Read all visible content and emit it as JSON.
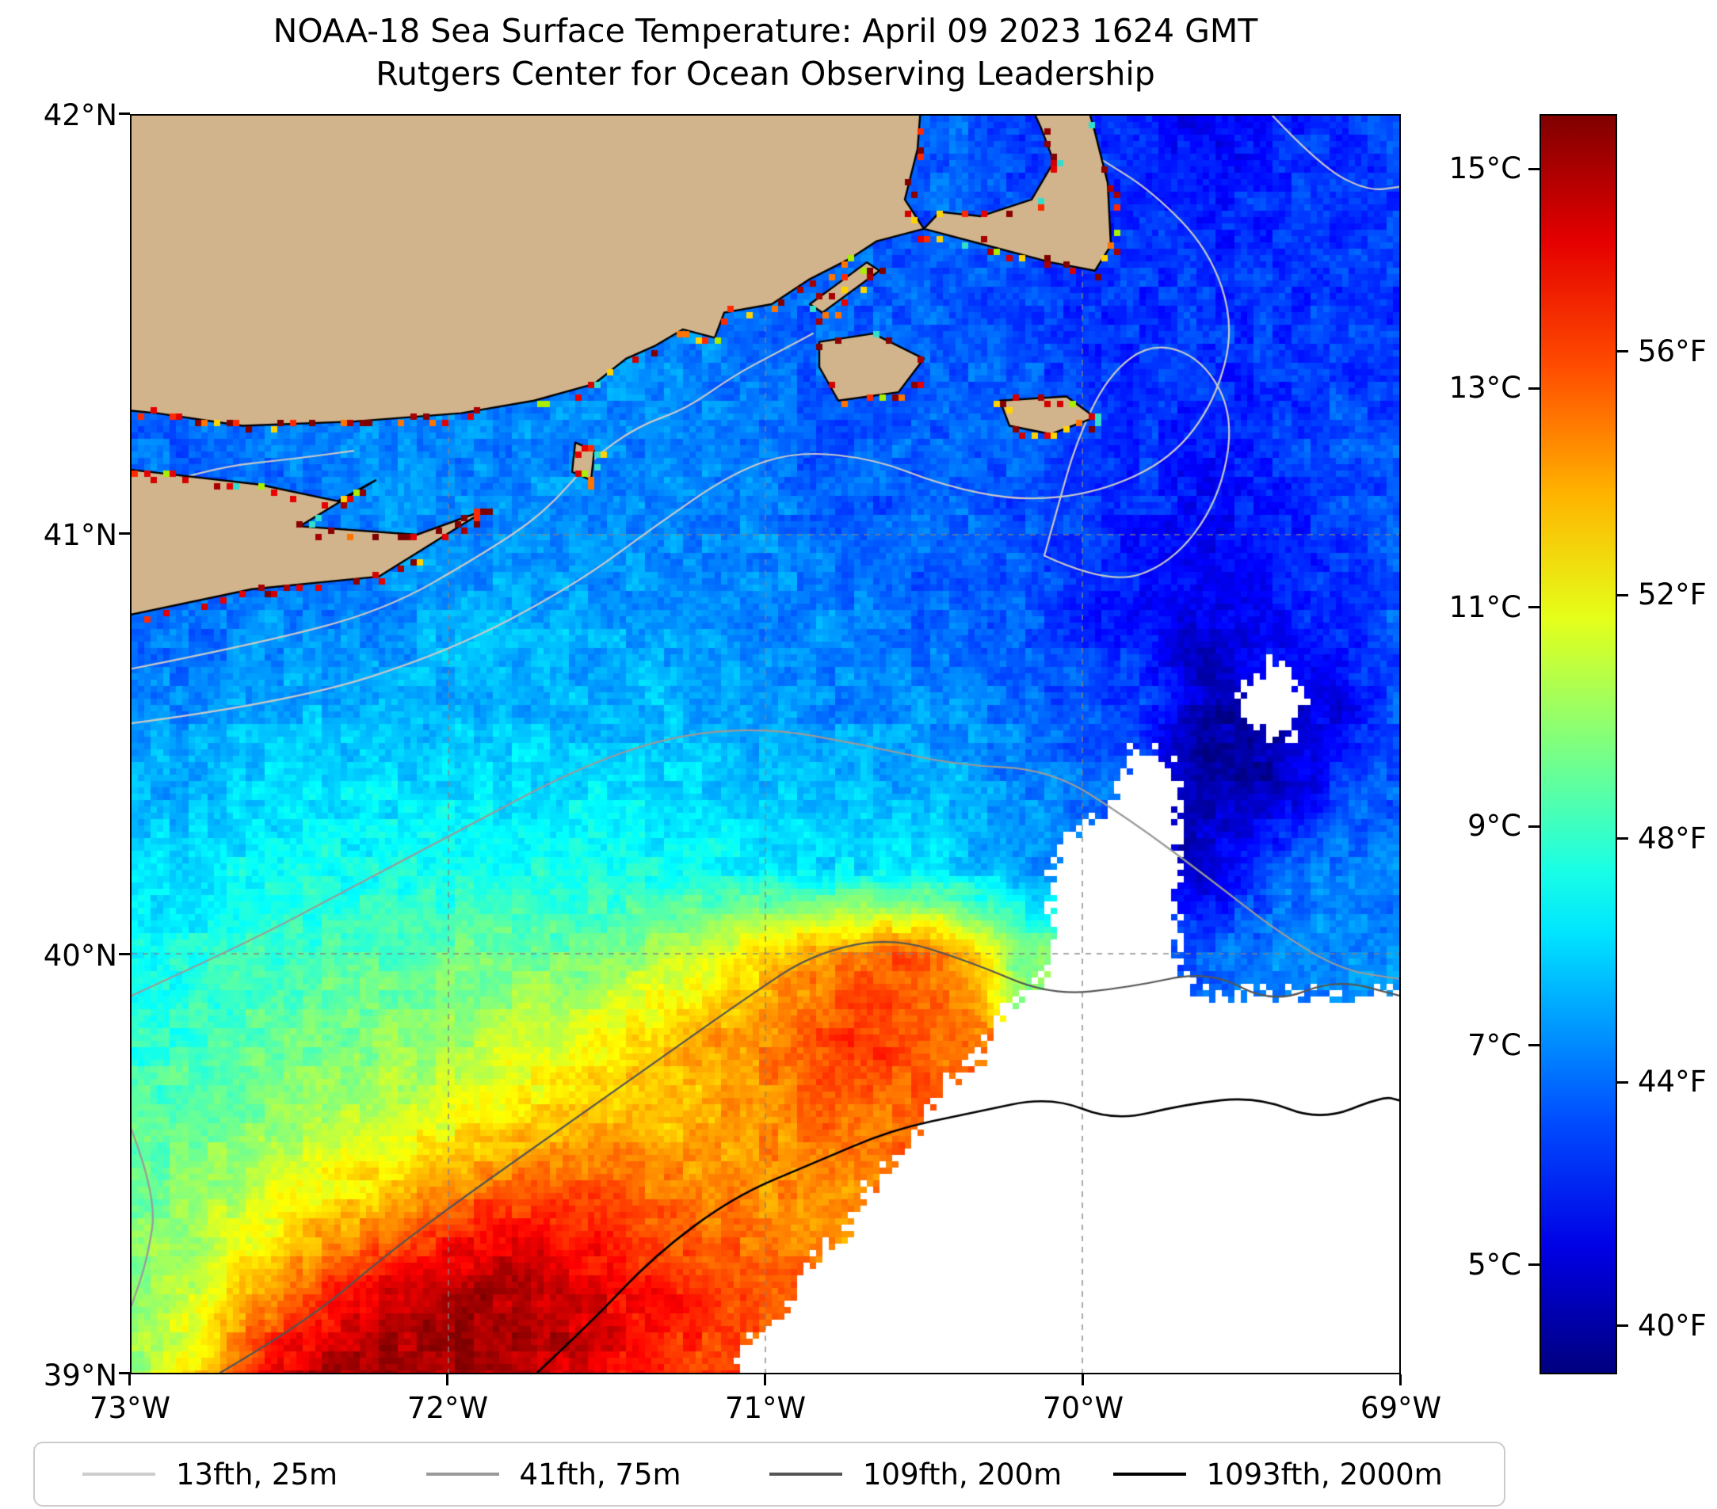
{
  "title": {
    "line1": "NOAA-18 Sea Surface Temperature: April 09 2023 1624 GMT",
    "line2": "Rutgers Center for Ocean Observing Leadership"
  },
  "axes": {
    "x_ticks": [
      "73°W",
      "72°W",
      "71°W",
      "70°W",
      "69°W"
    ],
    "y_ticks": [
      "42°N",
      "41°N",
      "40°N",
      "39°N"
    ],
    "lon_range": [
      -73,
      -69
    ],
    "lat_range": [
      39,
      42
    ]
  },
  "colorbar": {
    "colormap": "jet",
    "range_c": [
      4,
      15.5
    ],
    "celsius_ticks": [
      {
        "label": "15°C",
        "value": 15
      },
      {
        "label": "13°C",
        "value": 13
      },
      {
        "label": "11°C",
        "value": 11
      },
      {
        "label": "9°C",
        "value": 9
      },
      {
        "label": "7°C",
        "value": 7
      },
      {
        "label": "5°C",
        "value": 5
      }
    ],
    "fahrenheit_ticks": [
      {
        "label": "56°F",
        "value": 56
      },
      {
        "label": "52°F",
        "value": 52
      },
      {
        "label": "48°F",
        "value": 48
      },
      {
        "label": "44°F",
        "value": 44
      },
      {
        "label": "40°F",
        "value": 40
      }
    ]
  },
  "legend": {
    "items": [
      {
        "label": "13fth, 25m",
        "color": "#cdcdcd"
      },
      {
        "label": "41fth, 75m",
        "color": "#9a9a9a"
      },
      {
        "label": "109fth, 200m",
        "color": "#555555"
      },
      {
        "label": "1093fth, 2000m",
        "color": "#000000"
      }
    ]
  },
  "chart_data": {
    "type": "heatmap",
    "units": "°C",
    "value_range": [
      4,
      15.5
    ],
    "no_data_value": -1,
    "lon_start": -73,
    "lon_step": 0.2,
    "lat_start": 42,
    "lat_step": -0.2,
    "sst_grid": [
      [
        6.5,
        6.5,
        6.5,
        6.5,
        6.5,
        6.5,
        6.5,
        6.5,
        6.5,
        6.5,
        6.5,
        6.5,
        6.5,
        6.5,
        6.2,
        6.0,
        5.6,
        5.2,
        5.6,
        6.0,
        6.2
      ],
      [
        6.5,
        6.5,
        6.5,
        6.5,
        6.5,
        6.5,
        6.5,
        6.5,
        6.5,
        6.5,
        6.5,
        6.5,
        6.5,
        6.5,
        6.2,
        6.0,
        6.0,
        5.6,
        6.0,
        6.0,
        6.0
      ],
      [
        6.6,
        6.6,
        6.6,
        6.6,
        6.6,
        6.6,
        6.7,
        7.0,
        7.0,
        7.0,
        6.6,
        6.5,
        6.5,
        6.5,
        6.2,
        6.0,
        6.0,
        6.0,
        6.0,
        6.0,
        6.0
      ],
      [
        6.6,
        6.6,
        6.6,
        6.6,
        6.6,
        6.6,
        6.7,
        7.0,
        7.0,
        7.0,
        6.6,
        6.5,
        6.5,
        6.5,
        6.4,
        6.0,
        6.0,
        6.0,
        6.0,
        6.0,
        6.0
      ],
      [
        6.6,
        6.6,
        6.7,
        7.0,
        7.0,
        7.0,
        7.0,
        7.0,
        7.0,
        7.0,
        6.6,
        6.5,
        6.5,
        6.5,
        6.4,
        6.0,
        6.0,
        5.6,
        6.0,
        6.4,
        6.4
      ],
      [
        6.6,
        6.6,
        6.6,
        6.8,
        7.0,
        7.0,
        7.0,
        7.0,
        7.0,
        7.0,
        7.0,
        6.6,
        6.5,
        6.5,
        6.4,
        6.0,
        5.6,
        5.5,
        5.6,
        6.0,
        6.4
      ],
      [
        6.6,
        6.6,
        7.0,
        7.0,
        7.0,
        7.4,
        7.4,
        7.4,
        7.2,
        7.0,
        7.0,
        7.0,
        6.6,
        6.5,
        6.5,
        6.0,
        5.5,
        5.0,
        5.5,
        6.0,
        6.4
      ],
      [
        7.0,
        7.0,
        7.4,
        7.4,
        7.5,
        7.5,
        7.5,
        7.5,
        7.5,
        7.4,
        7.2,
        7.0,
        7.0,
        7.0,
        6.6,
        6.4,
        6.0,
        4.5,
        -1,
        5.0,
        6.4
      ],
      [
        7.4,
        7.4,
        7.8,
        8.0,
        8.0,
        8.0,
        8.0,
        8.0,
        8.0,
        7.8,
        7.6,
        7.5,
        7.5,
        7.4,
        7.0,
        6.6,
        -1,
        4.5,
        4.5,
        6.0,
        6.5
      ],
      [
        7.8,
        8.0,
        8.4,
        8.5,
        8.5,
        8.5,
        8.5,
        8.5,
        8.5,
        8.4,
        8.2,
        8.0,
        8.0,
        7.8,
        7.2,
        -1,
        -1,
        5.0,
        6.4,
        7.0,
        7.0
      ],
      [
        8.5,
        8.6,
        9.0,
        9.0,
        9.2,
        9.4,
        9.5,
        9.6,
        10.0,
        10.5,
        11.5,
        12.5,
        13.0,
        12.4,
        9.8,
        -1,
        -1,
        6.5,
        7.0,
        7.0,
        7.0
      ],
      [
        8.8,
        9.0,
        9.4,
        9.6,
        9.8,
        10.0,
        10.5,
        11.0,
        11.5,
        12.0,
        12.6,
        13.4,
        13.5,
        12.8,
        -1,
        -1,
        -1,
        -1,
        -1,
        -1,
        -1
      ],
      [
        9.2,
        9.4,
        9.8,
        10.2,
        10.6,
        11.0,
        11.5,
        11.8,
        12.0,
        12.0,
        12.4,
        13.0,
        12.8,
        -1,
        -1,
        -1,
        -1,
        -1,
        -1,
        -1,
        -1
      ],
      [
        9.6,
        10.0,
        10.8,
        11.4,
        12.0,
        13.0,
        13.4,
        13.4,
        13.0,
        12.6,
        12.4,
        12.4,
        -1,
        -1,
        -1,
        -1,
        -1,
        -1,
        -1,
        -1,
        -1
      ],
      [
        10.0,
        10.6,
        12.0,
        13.4,
        14.4,
        15.0,
        15.0,
        14.6,
        14.0,
        13.5,
        13.0,
        -1,
        -1,
        -1,
        -1,
        -1,
        -1,
        -1,
        -1,
        -1,
        -1
      ],
      [
        10.0,
        11.5,
        14.0,
        15.0,
        15.2,
        15.2,
        15.0,
        14.6,
        14.0,
        13.4,
        -1,
        -1,
        -1,
        -1,
        -1,
        -1,
        -1,
        -1,
        -1,
        -1,
        -1
      ]
    ],
    "land_color": "#d2b48c",
    "coastal_speckle_colors": [
      "#7f0000",
      "#a80000",
      "#d40000",
      "#ff2a00",
      "#ff7300",
      "#ffd300",
      "#aaee00",
      "#8b0000",
      "#e60000",
      "#33ddcc"
    ],
    "grid_lines": {
      "lons": [
        -72,
        -71,
        -70
      ],
      "lats": [
        40,
        41
      ]
    },
    "land_polygons": [
      {
        "name": "new-england-mainland",
        "points": [
          [
            -73.06,
            42.12
          ],
          [
            -70.5,
            42.12
          ],
          [
            -70.52,
            41.92
          ],
          [
            -70.56,
            41.8
          ],
          [
            -70.5,
            41.73
          ],
          [
            -70.65,
            41.7
          ],
          [
            -70.73,
            41.66
          ],
          [
            -70.86,
            41.61
          ],
          [
            -70.98,
            41.55
          ],
          [
            -71.13,
            41.53
          ],
          [
            -71.16,
            41.47
          ],
          [
            -71.26,
            41.49
          ],
          [
            -71.35,
            41.45
          ],
          [
            -71.44,
            41.42
          ],
          [
            -71.54,
            41.36
          ],
          [
            -71.73,
            41.32
          ],
          [
            -71.96,
            41.29
          ],
          [
            -72.3,
            41.27
          ],
          [
            -72.65,
            41.26
          ],
          [
            -72.92,
            41.29
          ],
          [
            -73.06,
            41.3
          ]
        ]
      },
      {
        "name": "cape-cod",
        "points": [
          [
            -70.5,
            41.73
          ],
          [
            -70.3,
            41.69
          ],
          [
            -70.1,
            41.65
          ],
          [
            -69.96,
            41.63
          ],
          [
            -69.91,
            41.69
          ],
          [
            -69.92,
            41.84
          ],
          [
            -69.96,
            41.96
          ],
          [
            -70.02,
            42.12
          ],
          [
            -70.22,
            42.12
          ],
          [
            -70.13,
            41.97
          ],
          [
            -70.09,
            41.89
          ],
          [
            -70.16,
            41.8
          ],
          [
            -70.32,
            41.76
          ],
          [
            -70.45,
            41.77
          ]
        ]
      },
      {
        "name": "long-island",
        "points": [
          [
            -73.06,
            41.16
          ],
          [
            -72.6,
            41.12
          ],
          [
            -72.35,
            41.08
          ],
          [
            -72.23,
            41.13
          ],
          [
            -72.47,
            41.02
          ],
          [
            -72.1,
            41.0
          ],
          [
            -71.88,
            41.06
          ],
          [
            -72.22,
            40.9
          ],
          [
            -72.62,
            40.87
          ],
          [
            -73.06,
            40.8
          ]
        ]
      },
      {
        "name": "block-island",
        "points": [
          [
            -71.6,
            41.22
          ],
          [
            -71.54,
            41.2
          ],
          [
            -71.55,
            41.13
          ],
          [
            -71.61,
            41.15
          ]
        ]
      },
      {
        "name": "marthas-vineyard",
        "points": [
          [
            -70.83,
            41.46
          ],
          [
            -70.66,
            41.48
          ],
          [
            -70.5,
            41.42
          ],
          [
            -70.58,
            41.34
          ],
          [
            -70.77,
            41.32
          ],
          [
            -70.83,
            41.4
          ]
        ]
      },
      {
        "name": "nantucket",
        "points": [
          [
            -70.26,
            41.32
          ],
          [
            -70.05,
            41.33
          ],
          [
            -69.96,
            41.28
          ],
          [
            -70.1,
            41.24
          ],
          [
            -70.23,
            41.26
          ]
        ]
      },
      {
        "name": "elizabeth-islands",
        "points": [
          [
            -70.64,
            41.63
          ],
          [
            -70.82,
            41.53
          ],
          [
            -70.86,
            41.55
          ],
          [
            -70.68,
            41.65
          ]
        ]
      }
    ],
    "contours": [
      {
        "name": "13fth, 25m",
        "depth_m": 25,
        "color": "#c9c9c9",
        "width": 2.2,
        "paths": [
          [
            [
              -73,
              40.68
            ],
            [
              -72.6,
              40.74
            ],
            [
              -72.2,
              40.82
            ],
            [
              -71.9,
              40.95
            ],
            [
              -71.7,
              41.05
            ],
            [
              -71.55,
              41.18
            ],
            [
              -71.4,
              41.26
            ],
            [
              -71.25,
              41.3
            ],
            [
              -71.1,
              41.38
            ],
            [
              -70.95,
              41.44
            ],
            [
              -70.85,
              41.48
            ]
          ],
          [
            [
              -73,
              40.55
            ],
            [
              -72.5,
              40.6
            ],
            [
              -72.0,
              40.72
            ],
            [
              -71.6,
              40.88
            ],
            [
              -71.35,
              41.02
            ],
            [
              -71.1,
              41.15
            ],
            [
              -70.9,
              41.2
            ],
            [
              -70.65,
              41.18
            ],
            [
              -70.45,
              41.12
            ],
            [
              -70.2,
              41.08
            ],
            [
              -69.95,
              41.1
            ],
            [
              -69.72,
              41.18
            ],
            [
              -69.58,
              41.32
            ],
            [
              -69.52,
              41.5
            ],
            [
              -69.6,
              41.68
            ],
            [
              -69.78,
              41.82
            ],
            [
              -69.95,
              41.9
            ]
          ],
          [
            [
              -70.12,
              40.95
            ],
            [
              -69.92,
              40.88
            ],
            [
              -69.72,
              40.93
            ],
            [
              -69.57,
              41.08
            ],
            [
              -69.52,
              41.28
            ],
            [
              -69.62,
              41.42
            ],
            [
              -69.78,
              41.46
            ],
            [
              -69.92,
              41.38
            ],
            [
              -70.02,
              41.22
            ],
            [
              -70.08,
              41.06
            ],
            [
              -70.12,
              40.95
            ]
          ],
          [
            [
              -73,
              41.1
            ],
            [
              -72.75,
              41.16
            ],
            [
              -72.5,
              41.18
            ],
            [
              -72.3,
              41.2
            ]
          ],
          [
            [
              -69.4,
              42.0
            ],
            [
              -69.25,
              41.88
            ],
            [
              -69.1,
              41.82
            ],
            [
              -69.0,
              41.83
            ]
          ]
        ]
      },
      {
        "name": "41fth, 75m",
        "depth_m": 75,
        "color": "#9a9a9a",
        "width": 2.2,
        "paths": [
          [
            [
              -73,
              39.9
            ],
            [
              -72.65,
              40.02
            ],
            [
              -72.3,
              40.16
            ],
            [
              -71.95,
              40.3
            ],
            [
              -71.6,
              40.44
            ],
            [
              -71.3,
              40.52
            ],
            [
              -71.0,
              40.54
            ],
            [
              -70.7,
              40.5
            ],
            [
              -70.4,
              40.45
            ],
            [
              -70.1,
              40.44
            ],
            [
              -69.85,
              40.32
            ],
            [
              -69.6,
              40.18
            ],
            [
              -69.38,
              40.05
            ],
            [
              -69.18,
              39.96
            ],
            [
              -69,
              39.94
            ]
          ],
          [
            [
              -73,
              39.58
            ],
            [
              -72.92,
              39.42
            ],
            [
              -72.95,
              39.27
            ],
            [
              -73,
              39.16
            ]
          ]
        ]
      },
      {
        "name": "109fth, 200m",
        "depth_m": 200,
        "color": "#555555",
        "width": 2.2,
        "paths": [
          [
            [
              -72.72,
              39.0
            ],
            [
              -72.45,
              39.12
            ],
            [
              -72.2,
              39.28
            ],
            [
              -71.95,
              39.42
            ],
            [
              -71.65,
              39.58
            ],
            [
              -71.35,
              39.74
            ],
            [
              -71.05,
              39.9
            ],
            [
              -70.85,
              40.0
            ],
            [
              -70.6,
              40.04
            ],
            [
              -70.35,
              39.98
            ],
            [
              -70.1,
              39.9
            ],
            [
              -69.85,
              39.92
            ],
            [
              -69.6,
              39.96
            ],
            [
              -69.4,
              39.88
            ],
            [
              -69.2,
              39.94
            ],
            [
              -69,
              39.9
            ]
          ]
        ]
      },
      {
        "name": "1093fth, 2000m",
        "depth_m": 2000,
        "color": "#000000",
        "width": 2.6,
        "paths": [
          [
            [
              -71.72,
              39.0
            ],
            [
              -71.55,
              39.12
            ],
            [
              -71.35,
              39.28
            ],
            [
              -71.1,
              39.42
            ],
            [
              -70.85,
              39.5
            ],
            [
              -70.6,
              39.58
            ],
            [
              -70.35,
              39.62
            ],
            [
              -70.1,
              39.66
            ],
            [
              -69.9,
              39.6
            ],
            [
              -69.68,
              39.64
            ],
            [
              -69.45,
              39.66
            ],
            [
              -69.25,
              39.6
            ],
            [
              -69.05,
              39.66
            ],
            [
              -69,
              39.65
            ]
          ]
        ]
      }
    ]
  }
}
